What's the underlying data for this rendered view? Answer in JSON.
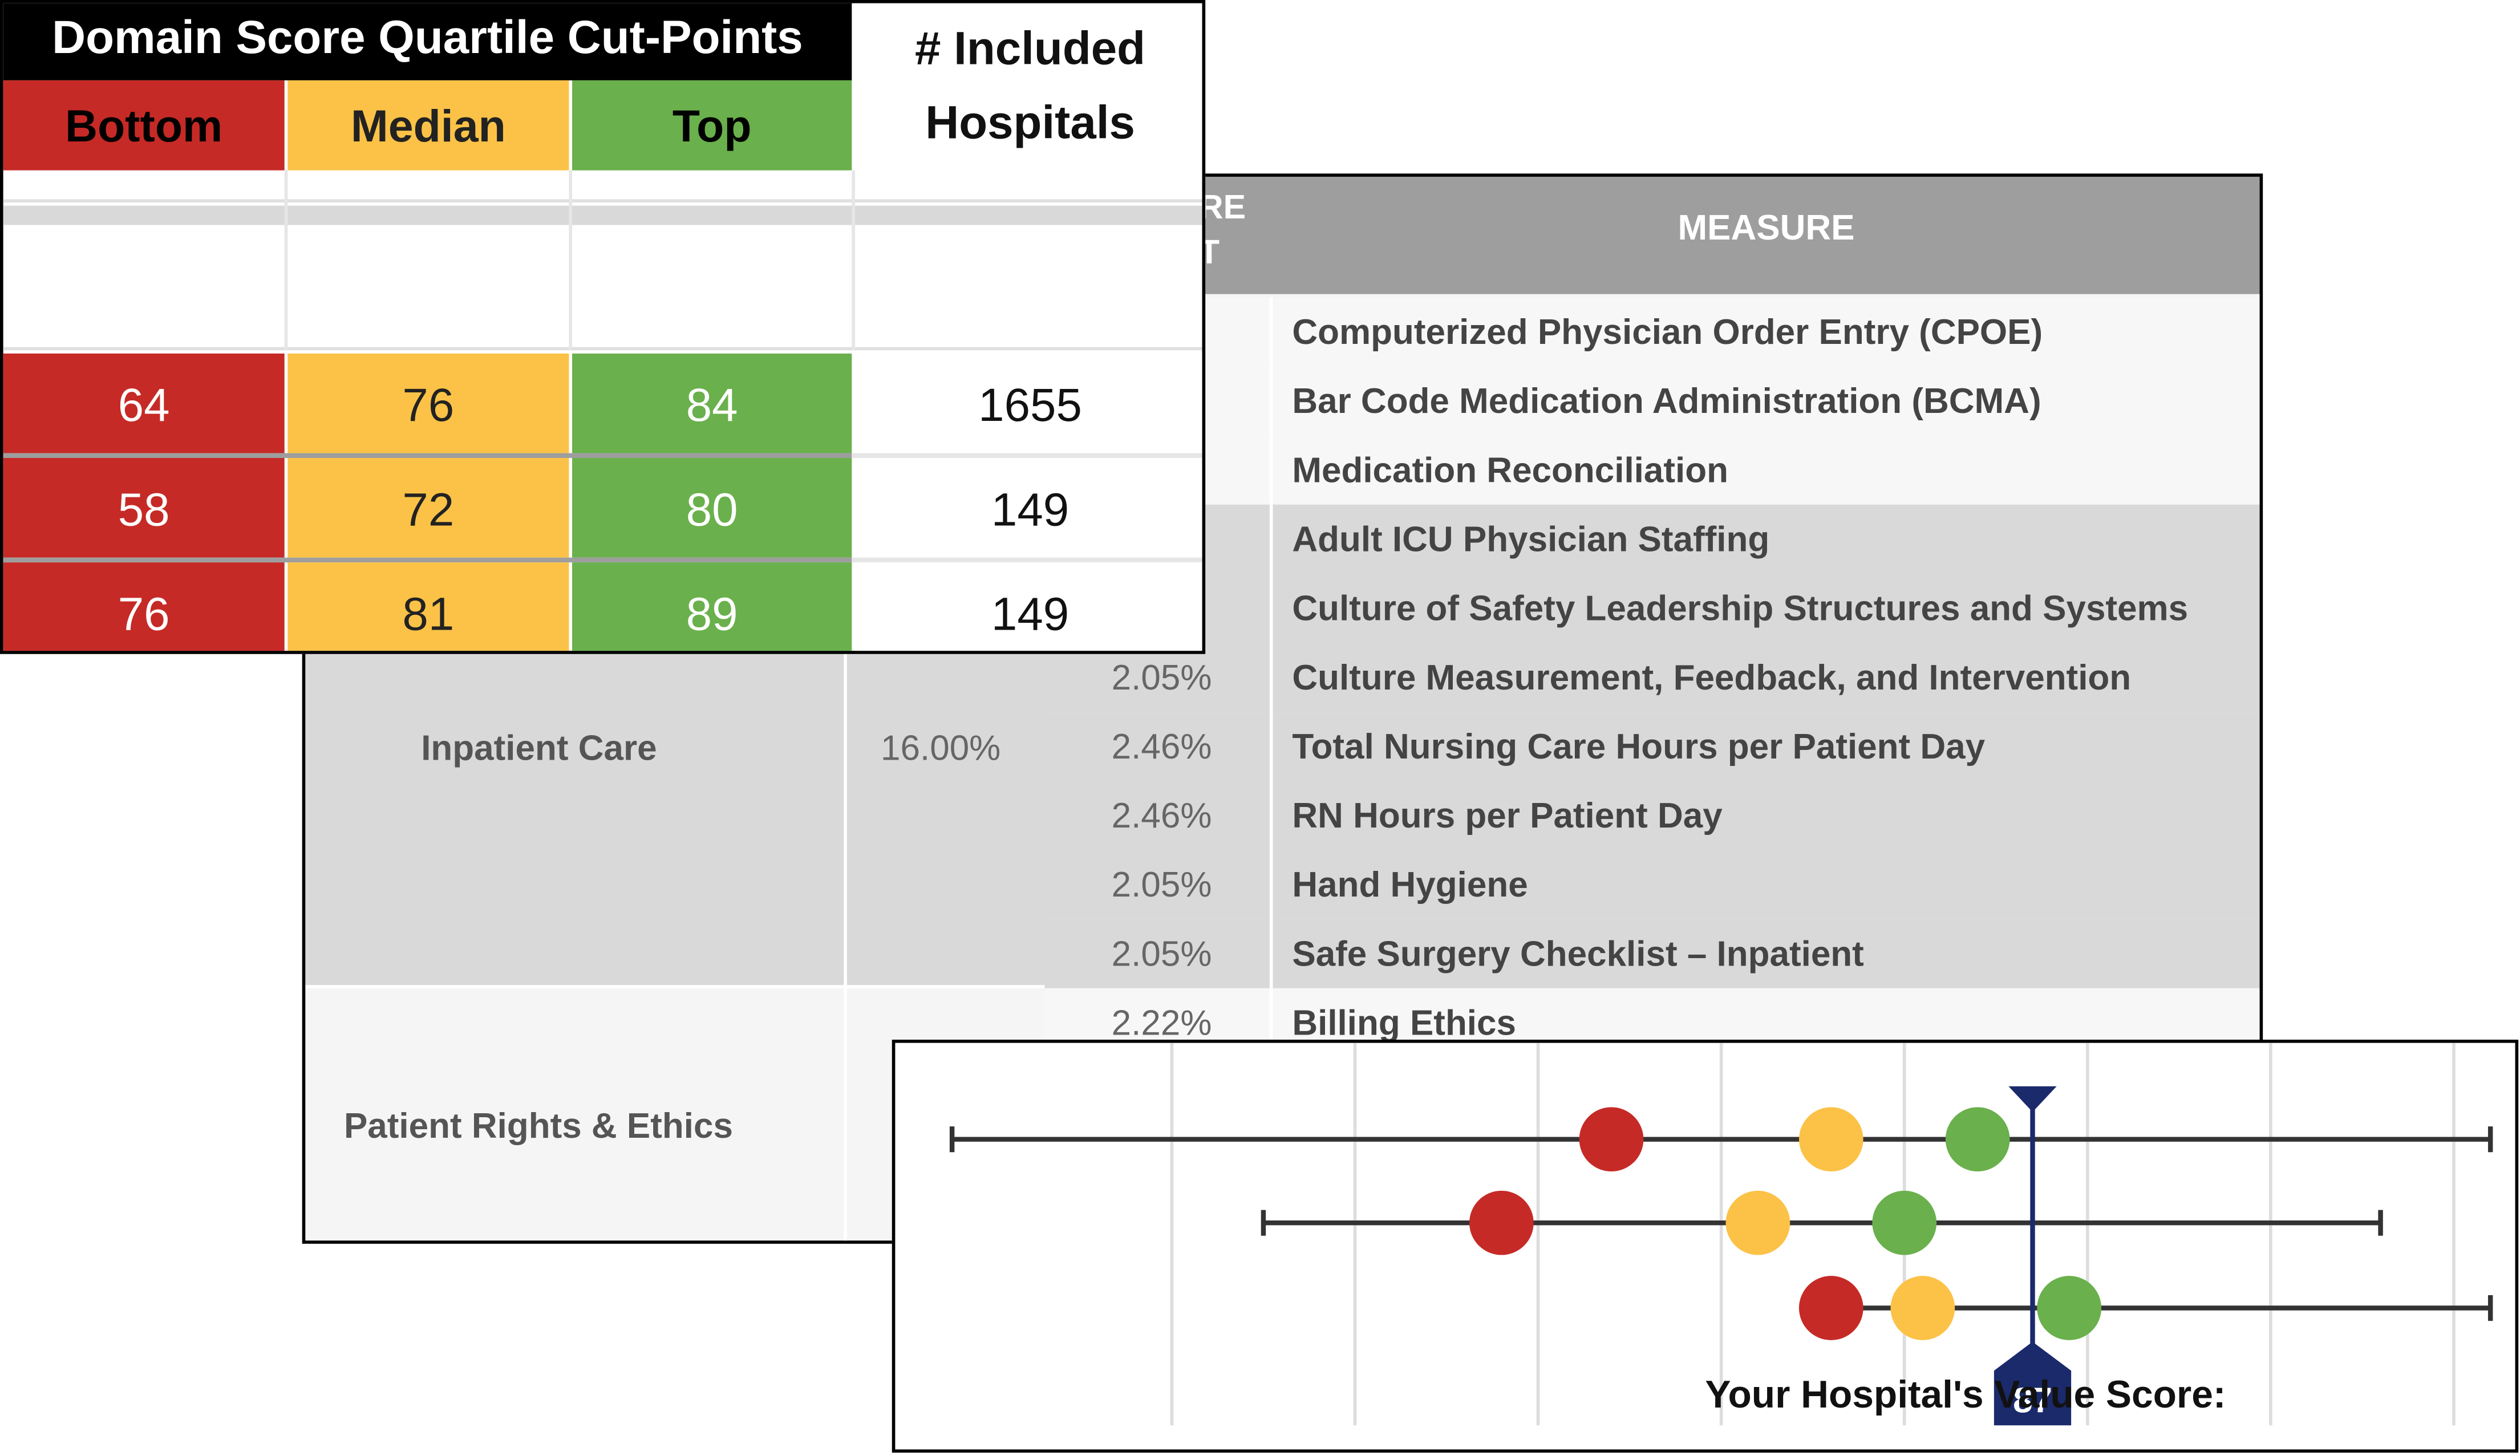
{
  "measures_table": {
    "header_weight_fragment": [
      "RE",
      "T"
    ],
    "header_measure": "MEASURE",
    "rows": [
      {
        "weight": "",
        "measure": "Computerized Physician Order Entry (CPOE)"
      },
      {
        "weight": "",
        "measure": "Bar Code Medication Administration (BCMA)"
      },
      {
        "weight": "",
        "measure": "Medication Reconciliation"
      },
      {
        "weight": "",
        "measure": "Adult ICU Physician Staffing"
      },
      {
        "weight": "",
        "measure": "Culture of Safety Leadership Structures and Systems"
      },
      {
        "weight": "2.05%",
        "measure": "Culture Measurement, Feedback, and Intervention"
      },
      {
        "weight": "2.46%",
        "measure": "Total Nursing Care Hours per Patient Day"
      },
      {
        "weight": "2.46%",
        "measure": "RN Hours per Patient Day"
      },
      {
        "weight": "2.05%",
        "measure": "Hand Hygiene"
      },
      {
        "weight": "2.05%",
        "measure": "Safe Surgery Checklist – Inpatient"
      },
      {
        "weight": "2.22%",
        "measure": "Billing Ethics"
      }
    ],
    "domains": [
      {
        "label": "Inpatient Care",
        "weight": "16.00%"
      },
      {
        "label": "Patient Rights & Ethics",
        "weight": ""
      }
    ]
  },
  "quartile_table": {
    "title": "Domain Score Quartile Cut-Points",
    "col_bottom": "Bottom",
    "col_median": "Median",
    "col_top": "Top",
    "col_included_line1": "# Included",
    "col_included_line2": "Hospitals",
    "rows": [
      {
        "bottom": "64",
        "median": "76",
        "top": "84",
        "included": "1655"
      },
      {
        "bottom": "58",
        "median": "72",
        "top": "80",
        "included": "149"
      },
      {
        "bottom": "76",
        "median": "81",
        "top": "89",
        "included": "149"
      }
    ],
    "colors": {
      "bottom": "#c62a26",
      "median": "#fbc247",
      "top": "#6ab04c"
    }
  },
  "chart_data": {
    "type": "scatter",
    "x_range": [
      27,
      113
    ],
    "your_score_label": "Your Hospital's Value Score:",
    "your_score": "87",
    "rows": [
      {
        "min": 28,
        "max": 112,
        "bottom": 64,
        "median": 76,
        "top": 84
      },
      {
        "min": 45,
        "max": 106,
        "bottom": 58,
        "median": 72,
        "top": 80
      },
      {
        "min": 75,
        "max": 112,
        "bottom": 76,
        "median": 81,
        "top": 89
      }
    ]
  }
}
